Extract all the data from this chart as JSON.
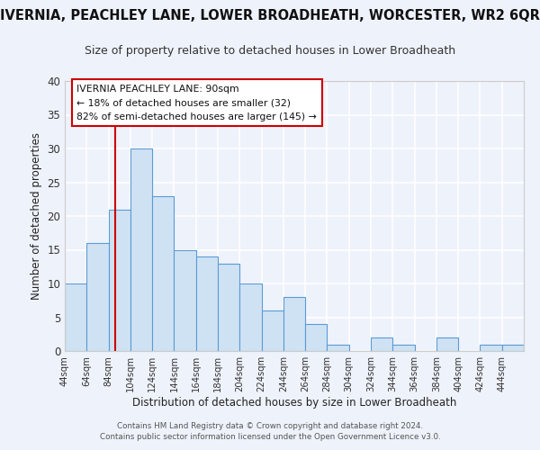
{
  "title": "IVERNIA, PEACHLEY LANE, LOWER BROADHEATH, WORCESTER, WR2 6QR",
  "subtitle": "Size of property relative to detached houses in Lower Broadheath",
  "xlabel": "Distribution of detached houses by size in Lower Broadheath",
  "ylabel": "Number of detached properties",
  "bin_edges": [
    44,
    64,
    84,
    104,
    124,
    144,
    164,
    184,
    204,
    224,
    244,
    264,
    284,
    304,
    324,
    344,
    364,
    384,
    404,
    424,
    444,
    464
  ],
  "counts": [
    10,
    16,
    21,
    30,
    23,
    15,
    14,
    13,
    10,
    6,
    8,
    4,
    1,
    0,
    2,
    1,
    0,
    2,
    0,
    1,
    1
  ],
  "bar_facecolor": "#cfe2f3",
  "bar_edgecolor": "#5b9bd5",
  "vline_x": 90,
  "vline_color": "#cc0000",
  "ylim": [
    0,
    40
  ],
  "yticks": [
    0,
    5,
    10,
    15,
    20,
    25,
    30,
    35,
    40
  ],
  "annotation_title": "IVERNIA PEACHLEY LANE: 90sqm",
  "annotation_line1": "← 18% of detached houses are smaller (32)",
  "annotation_line2": "82% of semi-detached houses are larger (145) →",
  "footer1": "Contains HM Land Registry data © Crown copyright and database right 2024.",
  "footer2": "Contains public sector information licensed under the Open Government Licence v3.0.",
  "background_color": "#eef2fb",
  "grid_color": "#ffffff",
  "title_fontsize": 10.5,
  "subtitle_fontsize": 9
}
